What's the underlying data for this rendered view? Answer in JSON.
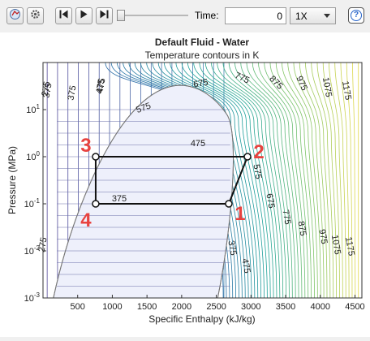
{
  "toolbar": {
    "buttons": [
      {
        "name": "fluid-selector-button",
        "icon": "fluid-icon"
      },
      {
        "name": "settings-button",
        "icon": "gear-icon"
      },
      {
        "name": "skip-to-start-button",
        "icon": "skip-back-icon"
      },
      {
        "name": "play-button",
        "icon": "play-icon"
      },
      {
        "name": "skip-to-end-button",
        "icon": "skip-forward-icon"
      }
    ],
    "slider_value": 0,
    "time_label": "Time:",
    "time_value": "0",
    "speed_value": "1X",
    "help_label": "?"
  },
  "chart_data": {
    "type": "contour",
    "title": "Default Fluid - Water",
    "subtitle": "Temperature contours in K",
    "xlabel": "Specific Enthalpy (kJ/kg)",
    "ylabel": "Pressure (MPa)",
    "xlim": [
      0,
      4600
    ],
    "ylim_log10": [
      -3,
      2
    ],
    "y_scale": "log",
    "x_ticks": [
      500,
      1000,
      1500,
      2000,
      2500,
      3000,
      3500,
      4000,
      4500
    ],
    "y_tick_labels": [
      "10-3",
      "10-2",
      "10-1",
      "100",
      "101"
    ],
    "y_tick_exponents": [
      -3,
      -2,
      -1,
      0,
      1
    ],
    "contour_labels": [
      "275",
      "375",
      "475",
      "575",
      "675",
      "775",
      "875",
      "975",
      "1075",
      "1175",
      "475",
      "375",
      "575",
      "675",
      "775",
      "875",
      "975",
      "1075",
      "1175",
      "375",
      "475",
      "275",
      "375",
      "475"
    ],
    "cycle": {
      "points": [
        {
          "label": "1",
          "h": 2680,
          "p": 0.1
        },
        {
          "label": "2",
          "h": 2950,
          "p": 1.0
        },
        {
          "label": "3",
          "h": 760,
          "p": 1.0
        },
        {
          "label": "4",
          "h": 760,
          "p": 0.1
        }
      ],
      "label_color": "#e8423f"
    },
    "colormap": [
      "#3b2f8c",
      "#2d6fa8",
      "#1fa39a",
      "#7cc46a",
      "#e2d84a"
    ],
    "dome_fill": "#eef0fb",
    "grid": false
  }
}
